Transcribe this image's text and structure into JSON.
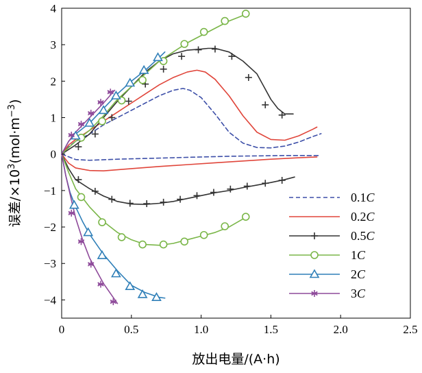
{
  "chart_data": {
    "type": "line",
    "title": "",
    "xlabel": "放出电量/(A·h)",
    "ylabel_parts": [
      "误差/×10",
      "3",
      "(mol·m",
      "−3",
      ")"
    ],
    "xlim": [
      0,
      2.5
    ],
    "ylim": [
      -4.5,
      4
    ],
    "xticks": [
      0,
      0.5,
      1.0,
      1.5,
      2.0,
      2.5
    ],
    "xtick_labels": [
      "0",
      "0.5",
      "1.0",
      "1.5",
      "2.0",
      "2.5"
    ],
    "yticks": [
      -4,
      -3,
      -2,
      -1,
      0,
      1,
      2,
      3,
      4
    ],
    "ytick_labels": [
      "−4",
      "−3",
      "−2",
      "−1",
      "0",
      "1",
      "2",
      "3",
      "4"
    ],
    "grid": false,
    "legend_position": "bottom-right",
    "series": [
      {
        "name": "0.1C",
        "legend_num": "0.1",
        "legend_unit": "C",
        "color": "#3d4fa8",
        "dash": "6,4",
        "marker": "none",
        "curves": [
          [
            [
              0,
              0
            ],
            [
              0.05,
              0.2
            ],
            [
              0.1,
              0.35
            ],
            [
              0.2,
              0.55
            ],
            [
              0.3,
              0.8
            ],
            [
              0.4,
              1.0
            ],
            [
              0.5,
              1.2
            ],
            [
              0.6,
              1.4
            ],
            [
              0.7,
              1.6
            ],
            [
              0.8,
              1.75
            ],
            [
              0.87,
              1.8
            ],
            [
              0.92,
              1.75
            ],
            [
              1.0,
              1.55
            ],
            [
              1.1,
              1.1
            ],
            [
              1.2,
              0.6
            ],
            [
              1.3,
              0.3
            ],
            [
              1.4,
              0.18
            ],
            [
              1.5,
              0.17
            ],
            [
              1.6,
              0.22
            ],
            [
              1.7,
              0.33
            ],
            [
              1.8,
              0.48
            ],
            [
              1.86,
              0.56
            ]
          ],
          [
            [
              0,
              0
            ],
            [
              0.1,
              -0.15
            ],
            [
              0.2,
              -0.17
            ],
            [
              0.4,
              -0.14
            ],
            [
              0.6,
              -0.12
            ],
            [
              0.8,
              -0.1
            ],
            [
              1.0,
              -0.08
            ],
            [
              1.2,
              -0.06
            ],
            [
              1.4,
              -0.05
            ],
            [
              1.6,
              -0.04
            ],
            [
              1.85,
              -0.04
            ]
          ]
        ],
        "markers": []
      },
      {
        "name": "0.2C",
        "legend_num": "0.2",
        "legend_unit": "C",
        "color": "#e0453a",
        "dash": "",
        "marker": "none",
        "curves": [
          [
            [
              0,
              0
            ],
            [
              0.05,
              0.25
            ],
            [
              0.1,
              0.4
            ],
            [
              0.2,
              0.65
            ],
            [
              0.3,
              0.9
            ],
            [
              0.4,
              1.15
            ],
            [
              0.5,
              1.4
            ],
            [
              0.6,
              1.65
            ],
            [
              0.7,
              1.9
            ],
            [
              0.8,
              2.1
            ],
            [
              0.9,
              2.25
            ],
            [
              0.97,
              2.3
            ],
            [
              1.03,
              2.25
            ],
            [
              1.1,
              2.05
            ],
            [
              1.2,
              1.6
            ],
            [
              1.3,
              1.05
            ],
            [
              1.4,
              0.6
            ],
            [
              1.5,
              0.4
            ],
            [
              1.6,
              0.38
            ],
            [
              1.7,
              0.5
            ],
            [
              1.8,
              0.68
            ],
            [
              1.83,
              0.74
            ]
          ],
          [
            [
              0,
              0
            ],
            [
              0.05,
              -0.25
            ],
            [
              0.1,
              -0.38
            ],
            [
              0.2,
              -0.45
            ],
            [
              0.3,
              -0.46
            ],
            [
              0.5,
              -0.4
            ],
            [
              0.7,
              -0.34
            ],
            [
              0.9,
              -0.29
            ],
            [
              1.1,
              -0.24
            ],
            [
              1.3,
              -0.19
            ],
            [
              1.5,
              -0.14
            ],
            [
              1.7,
              -0.1
            ],
            [
              1.83,
              -0.08
            ]
          ]
        ],
        "markers": []
      },
      {
        "name": "0.5C",
        "legend_num": "0.5",
        "legend_unit": "C",
        "color": "#333333",
        "dash": "",
        "marker": "plus",
        "curves": [
          [
            [
              0,
              0
            ],
            [
              0.1,
              0.25
            ],
            [
              0.2,
              0.55
            ],
            [
              0.3,
              1.0
            ],
            [
              0.4,
              1.45
            ],
            [
              0.5,
              1.85
            ],
            [
              0.6,
              2.25
            ],
            [
              0.7,
              2.55
            ],
            [
              0.8,
              2.75
            ],
            [
              0.9,
              2.85
            ],
            [
              1.0,
              2.88
            ],
            [
              1.05,
              2.9
            ],
            [
              1.1,
              2.9
            ],
            [
              1.2,
              2.8
            ],
            [
              1.3,
              2.55
            ],
            [
              1.4,
              2.2
            ],
            [
              1.5,
              1.5
            ],
            [
              1.55,
              1.25
            ],
            [
              1.6,
              1.1
            ],
            [
              1.66,
              1.1
            ]
          ],
          [
            [
              0,
              0
            ],
            [
              0.05,
              -0.4
            ],
            [
              0.1,
              -0.7
            ],
            [
              0.2,
              -0.95
            ],
            [
              0.3,
              -1.15
            ],
            [
              0.4,
              -1.3
            ],
            [
              0.5,
              -1.37
            ],
            [
              0.6,
              -1.38
            ],
            [
              0.7,
              -1.35
            ],
            [
              0.8,
              -1.3
            ],
            [
              0.9,
              -1.22
            ],
            [
              1.0,
              -1.14
            ],
            [
              1.1,
              -1.06
            ],
            [
              1.2,
              -1.0
            ],
            [
              1.3,
              -0.92
            ],
            [
              1.4,
              -0.85
            ],
            [
              1.5,
              -0.78
            ],
            [
              1.6,
              -0.7
            ],
            [
              1.67,
              -0.63
            ]
          ]
        ],
        "markers": [
          [
            0.12,
            0.2
          ],
          [
            0.24,
            0.55
          ],
          [
            0.36,
            1.0
          ],
          [
            0.48,
            1.45
          ],
          [
            0.6,
            1.92
          ],
          [
            0.73,
            2.33
          ],
          [
            0.86,
            2.68
          ],
          [
            0.98,
            2.86
          ],
          [
            1.1,
            2.88
          ],
          [
            1.22,
            2.68
          ],
          [
            1.34,
            2.1
          ],
          [
            1.46,
            1.35
          ],
          [
            1.58,
            1.07
          ],
          [
            0.12,
            -0.7
          ],
          [
            0.24,
            -1.02
          ],
          [
            0.36,
            -1.24
          ],
          [
            0.49,
            -1.35
          ],
          [
            0.61,
            -1.36
          ],
          [
            0.73,
            -1.32
          ],
          [
            0.85,
            -1.24
          ],
          [
            0.97,
            -1.14
          ],
          [
            1.09,
            -1.05
          ],
          [
            1.21,
            -0.96
          ],
          [
            1.33,
            -0.88
          ],
          [
            1.46,
            -0.8
          ],
          [
            1.58,
            -0.72
          ]
        ]
      },
      {
        "name": "1C",
        "legend_num": "1",
        "legend_unit": "C",
        "color": "#7ab648",
        "dash": "",
        "marker": "circle",
        "curves": [
          [
            [
              0,
              0
            ],
            [
              0.1,
              0.35
            ],
            [
              0.2,
              0.65
            ],
            [
              0.3,
              1.05
            ],
            [
              0.4,
              1.5
            ],
            [
              0.5,
              1.85
            ],
            [
              0.6,
              2.2
            ],
            [
              0.7,
              2.55
            ],
            [
              0.8,
              2.8
            ],
            [
              0.9,
              3.05
            ],
            [
              1.0,
              3.25
            ],
            [
              1.1,
              3.45
            ],
            [
              1.2,
              3.65
            ],
            [
              1.3,
              3.8
            ],
            [
              1.32,
              3.85
            ]
          ],
          [
            [
              0,
              0
            ],
            [
              0.05,
              -0.5
            ],
            [
              0.1,
              -0.95
            ],
            [
              0.15,
              -1.2
            ],
            [
              0.2,
              -1.45
            ],
            [
              0.3,
              -1.85
            ],
            [
              0.4,
              -2.15
            ],
            [
              0.5,
              -2.35
            ],
            [
              0.6,
              -2.48
            ],
            [
              0.7,
              -2.5
            ],
            [
              0.8,
              -2.45
            ],
            [
              0.9,
              -2.35
            ],
            [
              1.0,
              -2.25
            ],
            [
              1.1,
              -2.15
            ],
            [
              1.2,
              -2.0
            ],
            [
              1.3,
              -1.78
            ],
            [
              1.34,
              -1.72
            ]
          ]
        ],
        "markers": [
          [
            0.14,
            0.45
          ],
          [
            0.29,
            0.9
          ],
          [
            0.43,
            1.47
          ],
          [
            0.58,
            2.03
          ],
          [
            0.73,
            2.55
          ],
          [
            0.88,
            3.02
          ],
          [
            1.02,
            3.35
          ],
          [
            1.17,
            3.65
          ],
          [
            1.32,
            3.85
          ],
          [
            0.14,
            -1.18
          ],
          [
            0.29,
            -1.87
          ],
          [
            0.43,
            -2.28
          ],
          [
            0.58,
            -2.48
          ],
          [
            0.73,
            -2.48
          ],
          [
            0.88,
            -2.4
          ],
          [
            1.02,
            -2.22
          ],
          [
            1.17,
            -1.98
          ],
          [
            1.32,
            -1.72
          ]
        ]
      },
      {
        "name": "2C",
        "legend_num": "2",
        "legend_unit": "C",
        "color": "#2f7fb8",
        "dash": "",
        "marker": "triangle",
        "curves": [
          [
            [
              0,
              0
            ],
            [
              0.05,
              0.35
            ],
            [
              0.1,
              0.55
            ],
            [
              0.2,
              0.85
            ],
            [
              0.3,
              1.25
            ],
            [
              0.4,
              1.65
            ],
            [
              0.5,
              2.0
            ],
            [
              0.6,
              2.3
            ],
            [
              0.7,
              2.65
            ],
            [
              0.74,
              2.8
            ]
          ],
          [
            [
              0,
              0
            ],
            [
              0.03,
              -0.6
            ],
            [
              0.06,
              -1.05
            ],
            [
              0.1,
              -1.45
            ],
            [
              0.15,
              -1.85
            ],
            [
              0.2,
              -2.2
            ],
            [
              0.3,
              -2.75
            ],
            [
              0.4,
              -3.2
            ],
            [
              0.5,
              -3.6
            ],
            [
              0.6,
              -3.8
            ],
            [
              0.7,
              -3.93
            ],
            [
              0.74,
              -3.95
            ]
          ]
        ],
        "markers": [
          [
            0.1,
            0.5
          ],
          [
            0.2,
            0.85
          ],
          [
            0.3,
            1.2
          ],
          [
            0.39,
            1.6
          ],
          [
            0.49,
            1.95
          ],
          [
            0.59,
            2.3
          ],
          [
            0.69,
            2.65
          ],
          [
            0.09,
            -1.4
          ],
          [
            0.19,
            -2.15
          ],
          [
            0.29,
            -2.78
          ],
          [
            0.39,
            -3.28
          ],
          [
            0.49,
            -3.63
          ],
          [
            0.58,
            -3.85
          ],
          [
            0.68,
            -3.93
          ]
        ]
      },
      {
        "name": "3C",
        "legend_num": "3",
        "legend_unit": "C",
        "color": "#8e4a9a",
        "dash": "",
        "marker": "asterisk",
        "curves": [
          [
            [
              0,
              0
            ],
            [
              0.05,
              0.35
            ],
            [
              0.1,
              0.6
            ],
            [
              0.2,
              1.0
            ],
            [
              0.3,
              1.4
            ],
            [
              0.38,
              1.75
            ]
          ],
          [
            [
              0,
              0
            ],
            [
              0.03,
              -0.6
            ],
            [
              0.06,
              -1.1
            ],
            [
              0.1,
              -1.75
            ],
            [
              0.15,
              -2.35
            ],
            [
              0.2,
              -2.85
            ],
            [
              0.3,
              -3.55
            ],
            [
              0.4,
              -4.1
            ]
          ]
        ],
        "markers": [
          [
            0.07,
            0.52
          ],
          [
            0.14,
            0.82
          ],
          [
            0.21,
            1.12
          ],
          [
            0.28,
            1.42
          ],
          [
            0.35,
            1.7
          ],
          [
            0.07,
            -1.62
          ],
          [
            0.14,
            -2.4
          ],
          [
            0.21,
            -3.02
          ],
          [
            0.28,
            -3.57
          ],
          [
            0.37,
            -4.05
          ]
        ]
      }
    ]
  }
}
